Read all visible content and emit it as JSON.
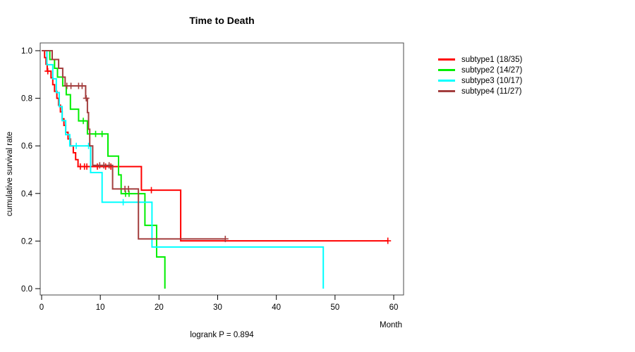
{
  "chart": {
    "title": "Time to Death",
    "ylabel": "cumulative survival rate",
    "xlabel": "Month",
    "footer": "logrank P = 0.894"
  },
  "chart_data": {
    "type": "line",
    "subtype": "kaplan-meier-step",
    "title": "Time to Death",
    "xlabel": "Month",
    "ylabel": "cumulative survival rate",
    "annotation": "logrank P = 0.894",
    "xlim": [
      0,
      60
    ],
    "ylim": [
      0.0,
      1.0
    ],
    "x_ticks": [
      0,
      10,
      20,
      30,
      40,
      50,
      60
    ],
    "y_ticks": [
      "0.0",
      "0.2",
      "0.4",
      "0.6",
      "0.8",
      "1.0"
    ],
    "grid": false,
    "legend_position": "right-outside",
    "frame_color": "#4a4a4a",
    "axis_color": "#000000",
    "series": [
      {
        "name": "subtype1",
        "label": "subtype1 (18/35)",
        "color": "#ff0000",
        "steps": [
          [
            0,
            1.0
          ],
          [
            0.5,
            0.971
          ],
          [
            0.75,
            0.943
          ],
          [
            0.95,
            0.914
          ],
          [
            1.6,
            0.886
          ],
          [
            1.9,
            0.857
          ],
          [
            2.2,
            0.829
          ],
          [
            2.6,
            0.8
          ],
          [
            2.9,
            0.771
          ],
          [
            3.2,
            0.743
          ],
          [
            3.5,
            0.714
          ],
          [
            3.8,
            0.686
          ],
          [
            4.1,
            0.657
          ],
          [
            4.5,
            0.629
          ],
          [
            4.9,
            0.6
          ],
          [
            5.4,
            0.571
          ],
          [
            5.8,
            0.542
          ],
          [
            6.2,
            0.513
          ],
          [
            17.0,
            0.414
          ],
          [
            23.7,
            0.201
          ],
          [
            59.0,
            0.201
          ]
        ],
        "censors": [
          [
            1.05,
            0.914
          ],
          [
            6.6,
            0.513
          ],
          [
            7.3,
            0.513
          ],
          [
            7.7,
            0.513
          ],
          [
            9.5,
            0.513
          ],
          [
            10.9,
            0.513
          ],
          [
            11.8,
            0.513
          ],
          [
            18.7,
            0.414
          ],
          [
            59.0,
            0.201
          ]
        ]
      },
      {
        "name": "subtype2",
        "label": "subtype2 (14/27)",
        "color": "#00ee00",
        "steps": [
          [
            0,
            1.0
          ],
          [
            1.4,
            0.963
          ],
          [
            2.2,
            0.926
          ],
          [
            2.7,
            0.889
          ],
          [
            3.6,
            0.852
          ],
          [
            4.2,
            0.815
          ],
          [
            4.9,
            0.754
          ],
          [
            6.3,
            0.705
          ],
          [
            7.8,
            0.65
          ],
          [
            11.3,
            0.557
          ],
          [
            13.1,
            0.478
          ],
          [
            13.55,
            0.399
          ],
          [
            17.6,
            0.266
          ],
          [
            19.6,
            0.133
          ],
          [
            21.0,
            0.0
          ]
        ],
        "censors": [
          [
            7.1,
            0.705
          ],
          [
            9.2,
            0.65
          ],
          [
            10.3,
            0.65
          ],
          [
            14.3,
            0.399
          ],
          [
            14.9,
            0.399
          ]
        ]
      },
      {
        "name": "subtype3",
        "label": "subtype3 (10/17)",
        "color": "#00ffff",
        "steps": [
          [
            0,
            1.0
          ],
          [
            0.9,
            0.941
          ],
          [
            1.9,
            0.882
          ],
          [
            2.5,
            0.824
          ],
          [
            3.0,
            0.765
          ],
          [
            3.5,
            0.706
          ],
          [
            4.1,
            0.647
          ],
          [
            4.8,
            0.6
          ],
          [
            8.35,
            0.488
          ],
          [
            10.3,
            0.363
          ],
          [
            18.8,
            0.175
          ],
          [
            48.0,
            0.0
          ]
        ],
        "censors": [
          [
            5.9,
            0.6
          ],
          [
            8.0,
            0.6
          ],
          [
            13.9,
            0.363
          ]
        ]
      },
      {
        "name": "subtype4",
        "label": "subtype4 (11/27)",
        "color": "#a33e3e",
        "steps": [
          [
            0,
            1.0
          ],
          [
            1.8,
            0.963
          ],
          [
            2.9,
            0.926
          ],
          [
            3.6,
            0.889
          ],
          [
            4.0,
            0.852
          ],
          [
            7.5,
            0.8
          ],
          [
            7.8,
            0.74
          ],
          [
            8.0,
            0.67
          ],
          [
            8.2,
            0.6
          ],
          [
            8.7,
            0.518
          ],
          [
            12.1,
            0.419
          ],
          [
            16.5,
            0.209
          ],
          [
            31.3,
            0.209
          ]
        ],
        "censors": [
          [
            4.3,
            0.852
          ],
          [
            5.0,
            0.852
          ],
          [
            6.3,
            0.852
          ],
          [
            6.9,
            0.852
          ],
          [
            7.6,
            0.8
          ],
          [
            9.9,
            0.518
          ],
          [
            10.6,
            0.518
          ],
          [
            11.5,
            0.518
          ],
          [
            14.2,
            0.419
          ],
          [
            14.8,
            0.419
          ],
          [
            31.3,
            0.209
          ]
        ]
      }
    ]
  }
}
